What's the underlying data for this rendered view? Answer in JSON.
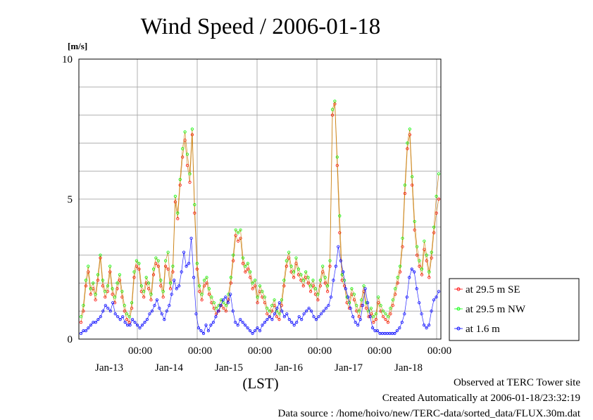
{
  "chart_data": {
    "type": "line",
    "title": "Wind Speed / 2006-01-18",
    "ylabel": "[m/s]",
    "xlabel": "(LST)",
    "ylim": [
      0,
      10
    ],
    "y_ticks": [
      "0",
      "5",
      "10"
    ],
    "x_ticks": [
      {
        "time": "00:00",
        "date": "Jan-13"
      },
      {
        "time": "00:00",
        "date": "Jan-14"
      },
      {
        "time": "00:00",
        "date": "Jan-15"
      },
      {
        "time": "00:00",
        "date": "Jan-16"
      },
      {
        "time": "00:00",
        "date": "Jan-17"
      },
      {
        "time": "00:00",
        "date": "Jan-18"
      }
    ],
    "grid": true,
    "legend_position": "right",
    "series": [
      {
        "name": "at 29.5 m SE",
        "color": "#ff0000",
        "values": [
          0.6,
          1.0,
          1.9,
          2.4,
          1.6,
          1.8,
          1.4,
          2.1,
          2.9,
          1.9,
          1.5,
          1.7,
          2.4,
          1.6,
          1.3,
          1.8,
          2.1,
          1.5,
          1.0,
          0.7,
          0.6,
          1.1,
          2.2,
          2.6,
          2.5,
          1.7,
          1.5,
          2.0,
          1.8,
          1.4,
          2.3,
          2.7,
          2.6,
          1.9,
          1.5,
          2.6,
          2.5,
          1.8,
          2.4,
          4.9,
          4.3,
          5.5,
          6.5,
          7.1,
          6.2,
          5.6,
          7.3,
          4.5,
          2.5,
          1.7,
          1.4,
          1.9,
          2.0,
          1.6,
          1.3,
          1.1,
          0.9,
          1.0,
          1.2,
          1.1,
          1.0,
          1.4,
          2.0,
          2.8,
          3.7,
          3.5,
          3.6,
          2.7,
          2.4,
          2.5,
          2.2,
          1.8,
          1.9,
          1.3,
          1.7,
          1.5,
          1.3,
          0.9,
          0.8,
          1.0,
          1.2,
          0.8,
          0.7,
          1.2,
          1.9,
          2.6,
          2.9,
          2.4,
          2.2,
          2.7,
          2.3,
          2.1,
          1.9,
          2.2,
          2.0,
          1.7,
          1.9,
          1.6,
          1.4,
          1.9,
          2.4,
          2.0,
          1.7,
          2.6,
          8.0,
          8.4,
          6.2,
          3.8,
          2.1,
          1.9,
          1.3,
          1.1,
          1.6,
          1.4,
          1.0,
          0.8,
          1.2,
          1.7,
          1.1,
          0.8,
          0.9,
          0.6,
          0.7,
          1.3,
          1.0,
          0.8,
          0.7,
          0.6,
          0.9,
          1.2,
          1.6,
          2.0,
          2.4,
          3.3,
          5.2,
          6.8,
          7.3,
          5.5,
          3.9,
          3.0,
          2.6,
          2.3,
          3.2,
          2.8,
          2.2,
          2.9,
          3.8,
          4.5,
          5.0
        ]
      },
      {
        "name": "at 29.5 m NW",
        "color": "#00ff00",
        "values": [
          0.8,
          1.2,
          2.1,
          2.6,
          1.8,
          2.0,
          1.6,
          2.3,
          3.0,
          2.1,
          1.7,
          1.9,
          2.6,
          1.8,
          1.5,
          2.0,
          2.3,
          1.7,
          1.2,
          0.9,
          0.8,
          1.3,
          2.4,
          2.8,
          2.7,
          1.9,
          1.7,
          2.2,
          2.0,
          1.6,
          2.5,
          2.9,
          2.8,
          2.1,
          1.7,
          2.8,
          3.1,
          2.0,
          2.6,
          5.1,
          4.5,
          5.7,
          6.8,
          7.4,
          6.6,
          5.9,
          7.5,
          4.8,
          2.7,
          1.9,
          1.6,
          2.1,
          2.2,
          1.8,
          1.5,
          1.3,
          1.1,
          1.2,
          1.4,
          1.3,
          1.2,
          1.6,
          2.2,
          3.0,
          3.9,
          3.8,
          3.9,
          2.9,
          2.6,
          2.7,
          2.4,
          2.0,
          2.1,
          1.5,
          1.9,
          1.7,
          1.5,
          1.1,
          1.0,
          1.2,
          1.4,
          1.0,
          0.9,
          1.4,
          2.1,
          2.8,
          3.1,
          2.6,
          2.4,
          2.9,
          2.5,
          2.3,
          2.1,
          2.4,
          2.2,
          1.9,
          2.1,
          1.8,
          1.6,
          2.1,
          2.6,
          2.2,
          1.9,
          2.8,
          8.2,
          8.5,
          6.5,
          4.4,
          2.3,
          2.1,
          1.5,
          1.3,
          1.8,
          1.6,
          1.2,
          1.0,
          1.4,
          1.9,
          1.3,
          1.0,
          1.1,
          0.8,
          0.9,
          1.5,
          1.2,
          1.0,
          0.9,
          0.8,
          1.1,
          1.4,
          1.8,
          2.2,
          2.6,
          3.6,
          5.5,
          7.0,
          7.5,
          5.8,
          4.2,
          3.3,
          2.8,
          2.5,
          3.5,
          3.0,
          2.4,
          3.1,
          4.0,
          5.1,
          5.9
        ]
      },
      {
        "name": "at 1.6 m",
        "color": "#0000ff",
        "values": [
          0.2,
          0.3,
          0.3,
          0.4,
          0.5,
          0.6,
          0.6,
          0.7,
          0.8,
          1.0,
          1.2,
          1.1,
          1.0,
          1.3,
          0.9,
          0.8,
          0.7,
          0.8,
          0.6,
          0.5,
          0.5,
          0.7,
          0.6,
          0.5,
          0.4,
          0.5,
          0.6,
          0.7,
          0.9,
          1.0,
          1.2,
          1.4,
          1.1,
          0.9,
          0.7,
          1.0,
          1.2,
          1.6,
          2.1,
          1.8,
          1.9,
          2.4,
          3.1,
          2.6,
          2.7,
          3.6,
          2.2,
          0.9,
          0.4,
          0.3,
          0.2,
          0.5,
          0.3,
          0.5,
          0.6,
          0.8,
          1.0,
          1.2,
          1.4,
          1.5,
          1.3,
          1.6,
          1.0,
          0.6,
          0.5,
          0.7,
          0.6,
          0.5,
          0.4,
          0.3,
          0.2,
          0.3,
          0.4,
          0.3,
          0.5,
          0.6,
          0.7,
          0.8,
          0.7,
          0.9,
          1.1,
          1.3,
          1.0,
          0.8,
          0.9,
          0.7,
          0.6,
          0.5,
          0.6,
          0.8,
          0.7,
          0.9,
          1.0,
          1.1,
          1.0,
          0.8,
          0.7,
          0.8,
          0.9,
          1.0,
          1.1,
          1.2,
          1.5,
          2.1,
          2.6,
          3.3,
          2.8,
          2.4,
          1.8,
          1.5,
          1.1,
          0.8,
          0.6,
          0.5,
          0.7,
          1.2,
          1.8,
          1.3,
          0.8,
          0.4,
          0.3,
          0.3,
          0.2,
          0.2,
          0.2,
          0.2,
          0.2,
          0.2,
          0.2,
          0.3,
          0.4,
          0.6,
          0.9,
          1.5,
          2.2,
          2.5,
          2.4,
          1.8,
          1.3,
          0.9,
          0.5,
          0.4,
          0.5,
          1.0,
          1.4,
          1.5,
          1.7
        ]
      }
    ]
  },
  "footer": {
    "line1": "Observed at TERC Tower site",
    "line2": "Created Automatically at 2006-01-18/23:32:19",
    "line3": "Data source : /home/hoivo/new/TERC-data/sorted_data/FLUX.30m.dat"
  }
}
